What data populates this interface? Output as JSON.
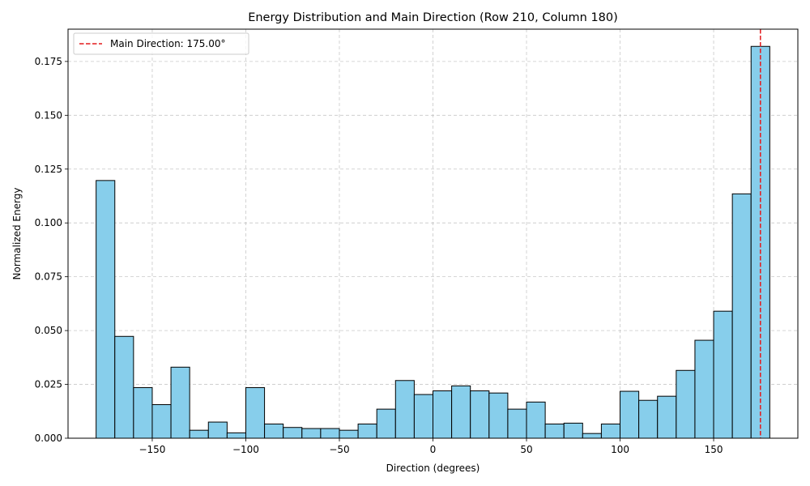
{
  "chart_data": {
    "type": "bar",
    "title": "Energy Distribution and Main Direction (Row 210, Column 180)",
    "xlabel": "Direction (degrees)",
    "ylabel": "Normalized Energy",
    "xlim": [
      -195,
      195
    ],
    "ylim": [
      0,
      0.19
    ],
    "xticks": [
      -150,
      -100,
      -50,
      0,
      50,
      100,
      150
    ],
    "xtick_labels": [
      "−150",
      "−100",
      "−50",
      "0",
      "50",
      "100",
      "150"
    ],
    "yticks": [
      0,
      0.025,
      0.05,
      0.075,
      0.1,
      0.125,
      0.15,
      0.175
    ],
    "ytick_labels": [
      "0.000",
      "0.025",
      "0.050",
      "0.075",
      "0.100",
      "0.125",
      "0.150",
      "0.175"
    ],
    "grid": true,
    "bin_edges": [
      -180,
      -170,
      -160,
      -150,
      -140,
      -130,
      -120,
      -110,
      -100,
      -90,
      -80,
      -70,
      -60,
      -50,
      -40,
      -30,
      -20,
      -10,
      0,
      10,
      20,
      30,
      40,
      50,
      60,
      70,
      80,
      90,
      100,
      110,
      120,
      130,
      140,
      150,
      160,
      170,
      180
    ],
    "values": [
      0.1197,
      0.0473,
      0.0235,
      0.0156,
      0.033,
      0.0037,
      0.0075,
      0.0025,
      0.0235,
      0.0066,
      0.005,
      0.0045,
      0.0045,
      0.0037,
      0.0066,
      0.0135,
      0.0268,
      0.0203,
      0.022,
      0.0243,
      0.022,
      0.021,
      0.0135,
      0.0168,
      0.0066,
      0.007,
      0.0022,
      0.0066,
      0.0218,
      0.0176,
      0.0195,
      0.0315,
      0.0455,
      0.059,
      0.1135,
      0.182
    ],
    "bar_color": "#87ceeb",
    "bar_edge_color": "#000000",
    "main_direction": {
      "value": 175,
      "label": "Main Direction: 175.00°",
      "color": "#e41a1c"
    },
    "legend_placement": "top-left"
  }
}
